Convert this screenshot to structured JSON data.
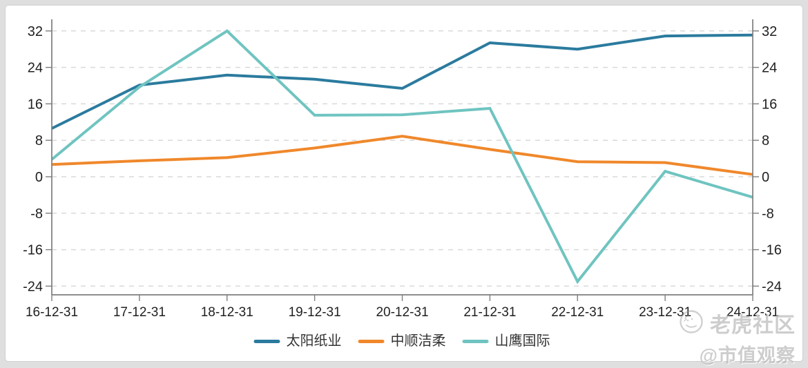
{
  "colors": {
    "page_background": "#dfdfdf",
    "card_background": "#ffffff",
    "axis": "#7d7d7d",
    "grid": "#d9d9d9",
    "tick_label": "#1f1f1f",
    "legend_text": "#333333",
    "watermark": "#c8c8c8"
  },
  "chart_data": {
    "type": "line",
    "x_labels": [
      "16-12-31",
      "17-12-31",
      "18-12-31",
      "19-12-31",
      "20-12-31",
      "21-12-31",
      "22-12-31",
      "23-12-31",
      "24-12-31"
    ],
    "y_ticks": [
      32,
      24,
      16,
      8,
      0,
      -8,
      -16,
      -24
    ],
    "ylim": [
      -24,
      32
    ],
    "y_tick_step": 8,
    "dual_y_axis": true,
    "grid": "horizontal-dashed",
    "legend_position": "bottom-center",
    "series": [
      {
        "name": "太阳纸业",
        "color": "#2b7b9e",
        "values": [
          10.6,
          20.1,
          22.3,
          21.4,
          19.4,
          29.4,
          28.0,
          30.9,
          31.1
        ]
      },
      {
        "name": "中顺洁柔",
        "color": "#f0882b",
        "values": [
          2.7,
          3.5,
          4.2,
          6.3,
          8.9,
          6.0,
          3.3,
          3.1,
          0.5
        ]
      },
      {
        "name": "山鹰国际",
        "color": "#6fc4c0",
        "values": [
          3.8,
          19.7,
          32.0,
          13.5,
          13.6,
          15.0,
          -23.0,
          1.2,
          -4.5
        ]
      }
    ]
  },
  "watermark": {
    "logo": "tiger-logo",
    "line1": "老虎社区",
    "line2": "@市值观察"
  }
}
